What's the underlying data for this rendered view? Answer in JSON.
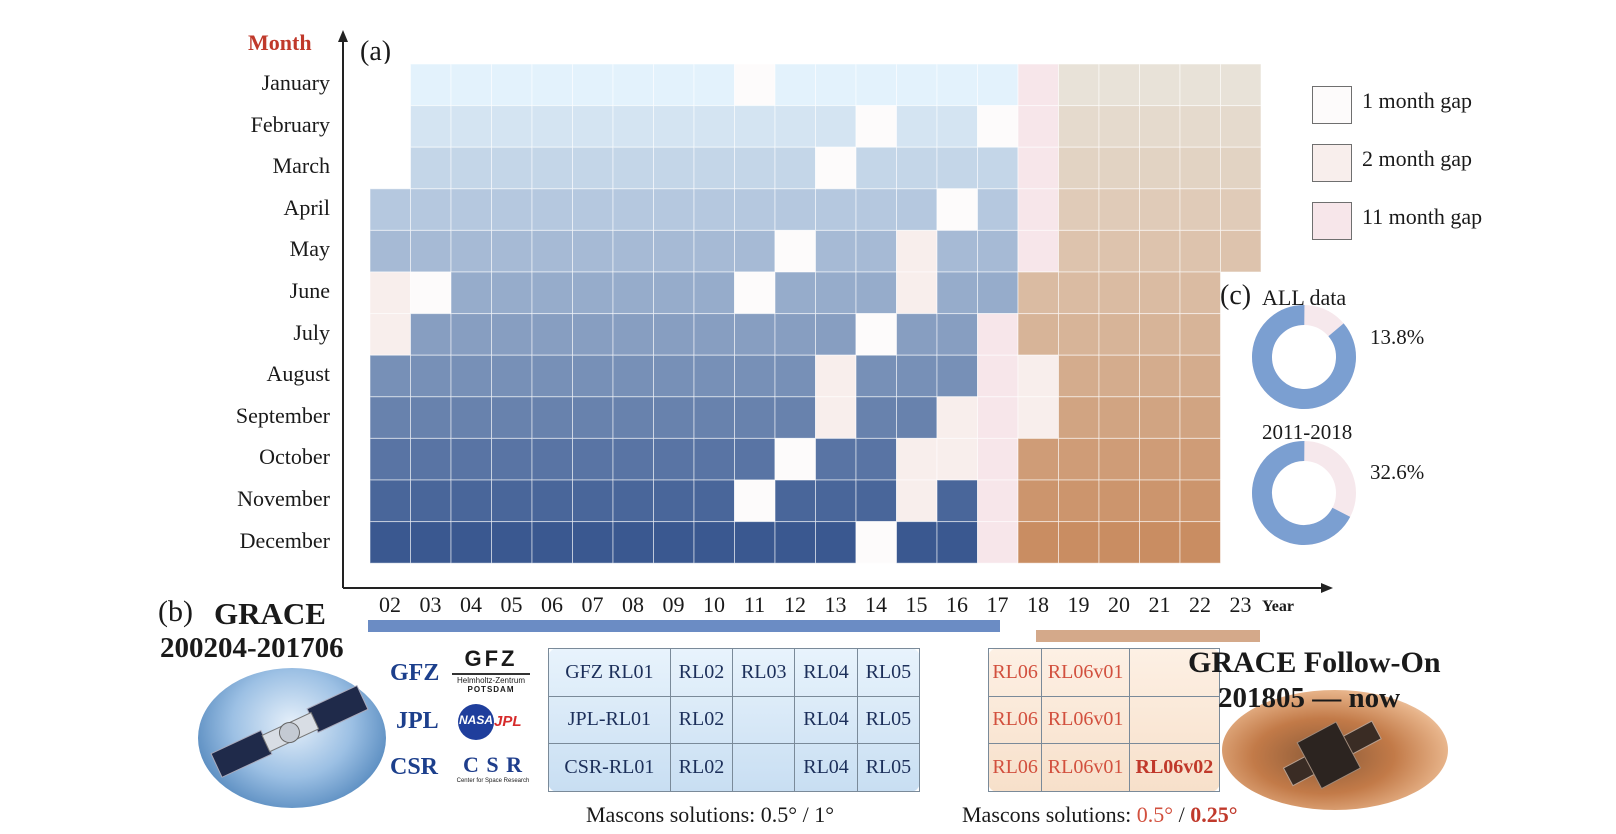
{
  "chart_data": {
    "type": "heatmap",
    "panel_a_label": "(a)",
    "y_axis_title": "Month",
    "x_axis_title": "Year",
    "years": [
      "02",
      "03",
      "04",
      "05",
      "06",
      "07",
      "08",
      "09",
      "10",
      "11",
      "12",
      "13",
      "14",
      "15",
      "16",
      "17",
      "18",
      "19",
      "20",
      "21",
      "22",
      "23"
    ],
    "months": [
      "January",
      "February",
      "March",
      "April",
      "May",
      "June",
      "July",
      "August",
      "September",
      "October",
      "November",
      "December"
    ],
    "gap_cells": [
      {
        "year": "02",
        "months": [
          "January",
          "February",
          "March"
        ],
        "gap": "none"
      },
      {
        "year": "02",
        "months": [
          "June",
          "July"
        ],
        "gap": "2 month gap"
      },
      {
        "year": "03",
        "months": [
          "June"
        ],
        "gap": "1 month gap"
      },
      {
        "year": "11",
        "months": [
          "January",
          "June",
          "November"
        ],
        "gap": "1 month gap"
      },
      {
        "year": "12",
        "months": [
          "May",
          "October"
        ],
        "gap": "1 month gap"
      },
      {
        "year": "13",
        "months": [
          "March"
        ],
        "gap": "1 month gap"
      },
      {
        "year": "13",
        "months": [
          "August",
          "September"
        ],
        "gap": "2 month gap"
      },
      {
        "year": "14",
        "months": [
          "February",
          "July",
          "December"
        ],
        "gap": "1 month gap"
      },
      {
        "year": "15",
        "months": [
          "May",
          "June",
          "October",
          "November"
        ],
        "gap": "2 month gap"
      },
      {
        "year": "16",
        "months": [
          "April"
        ],
        "gap": "1 month gap"
      },
      {
        "year": "16",
        "months": [
          "September",
          "October"
        ],
        "gap": "2 month gap"
      },
      {
        "year": "17",
        "months": [
          "February"
        ],
        "gap": "1 month gap"
      },
      {
        "year": "17-18",
        "months": [
          "July 2017 - May 2018"
        ],
        "gap": "11 month gap"
      },
      {
        "year": "18",
        "months": [
          "August",
          "September"
        ],
        "gap": "2 month gap"
      }
    ],
    "legend": [
      "1 month gap",
      "2 month gap",
      "11 month gap"
    ],
    "legend_colors": [
      "#fdfbfb",
      "#f8eeec",
      "#f7e6ea"
    ],
    "colors": {
      "grace_top": "#e3f2fc",
      "grace_bottom": "#3a5890",
      "fo_top": "#e8e2d8",
      "fo_bottom": "#c98d62"
    },
    "panel_c": {
      "label": "(c)",
      "title": "ALL data",
      "donuts": [
        {
          "label": "",
          "percent_text": "13.8%",
          "value": 13.8
        },
        {
          "label": "2011-2018",
          "percent_text": "32.6%",
          "value": 32.6
        }
      ]
    }
  },
  "panel_b": {
    "label": "(b)",
    "grace": {
      "title": "GRACE",
      "period": "200204-201706",
      "bar_color": "#6b8cc4"
    },
    "fo": {
      "title": "GRACE Follow-On",
      "period": "201805 — now",
      "bar_color": "#d4a98a"
    },
    "centers": [
      {
        "abbr": "GFZ",
        "logo_text": "GFZ",
        "logo_sub1": "Helmholtz-Zentrum",
        "logo_sub2": "POTSDAM"
      },
      {
        "abbr": "JPL",
        "logo_text": "NASA",
        "logo_sub1": "JPL",
        "logo_sub2": ""
      },
      {
        "abbr": "CSR",
        "logo_text": "C S R",
        "logo_sub1": "Center for Space Research",
        "logo_sub2": ""
      }
    ],
    "grace_table": [
      [
        "GFZ RL01",
        "RL02",
        "RL03",
        "RL04",
        "RL05"
      ],
      [
        "JPL-RL01",
        "RL02",
        "",
        "RL04",
        "RL05"
      ],
      [
        "CSR-RL01",
        "RL02",
        "",
        "RL04",
        "RL05"
      ]
    ],
    "fo_table": [
      [
        "RL06",
        "RL06v01",
        ""
      ],
      [
        "RL06",
        "RL06v01",
        ""
      ],
      [
        "RL06",
        "RL06v01",
        "RL06v02"
      ]
    ],
    "mascons_grace": {
      "prefix": "Mascons solutions: ",
      "v1": "0.5°",
      "sep": " / ",
      "v2": "1°"
    },
    "mascons_fo": {
      "prefix": "Mascons solutions: ",
      "v1": "0.5°",
      "sep": " / ",
      "v2": "0.25°"
    }
  }
}
